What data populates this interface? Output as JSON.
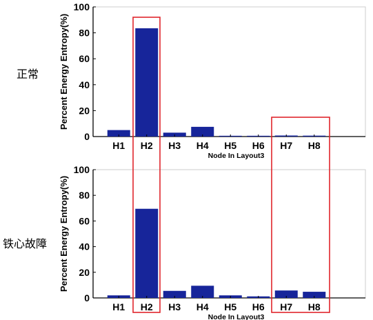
{
  "row_labels": [
    "正常",
    "铁心故障"
  ],
  "colors": {
    "bar": "#17259a",
    "highlight": "#e0252b",
    "axis": "#000000"
  },
  "chart_data": [
    {
      "type": "bar",
      "categories": [
        "H1",
        "H2",
        "H3",
        "H4",
        "H5",
        "H6",
        "H7",
        "H8"
      ],
      "values": [
        5,
        83.5,
        3,
        7.5,
        0.6,
        0.6,
        0.8,
        0.7
      ],
      "ylabel": "Percent Energy Entropy(%)",
      "xlabel": "Node In Layout3",
      "ylim": [
        0,
        100
      ],
      "yticks": [
        0,
        20,
        40,
        60,
        80,
        100
      ],
      "grid": false
    },
    {
      "type": "bar",
      "categories": [
        "H1",
        "H2",
        "H3",
        "H4",
        "H5",
        "H6",
        "H7",
        "H8"
      ],
      "values": [
        2,
        69.5,
        5.5,
        9.5,
        2,
        1.2,
        5.8,
        4.8
      ],
      "ylabel": "Percent Energy Entropy(%)",
      "xlabel": "Node In Layout3",
      "ylim": [
        0,
        100
      ],
      "yticks": [
        0,
        20,
        40,
        60,
        80,
        100
      ],
      "grid": false
    }
  ]
}
